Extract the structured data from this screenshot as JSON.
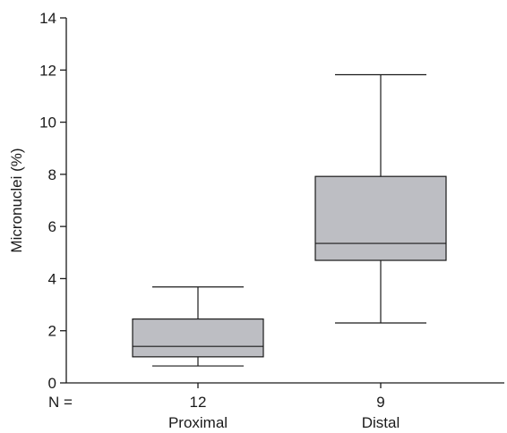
{
  "chart_data": {
    "type": "box",
    "ylabel": "Micronuclei (%)",
    "ylim": [
      0,
      14
    ],
    "yticks": [
      0,
      2,
      4,
      6,
      8,
      10,
      12,
      14
    ],
    "n_prefix": "N =",
    "groups": [
      {
        "category": "Proximal",
        "n": "12",
        "min": 0.65,
        "q1": 1.0,
        "median": 1.4,
        "q3": 2.45,
        "max": 3.68
      },
      {
        "category": "Distal",
        "n": "9",
        "min": 2.3,
        "q1": 4.7,
        "median": 5.35,
        "q3": 7.92,
        "max": 11.82
      }
    ],
    "box_color": "#bdbec3",
    "line_color": "#1a1a1a"
  }
}
